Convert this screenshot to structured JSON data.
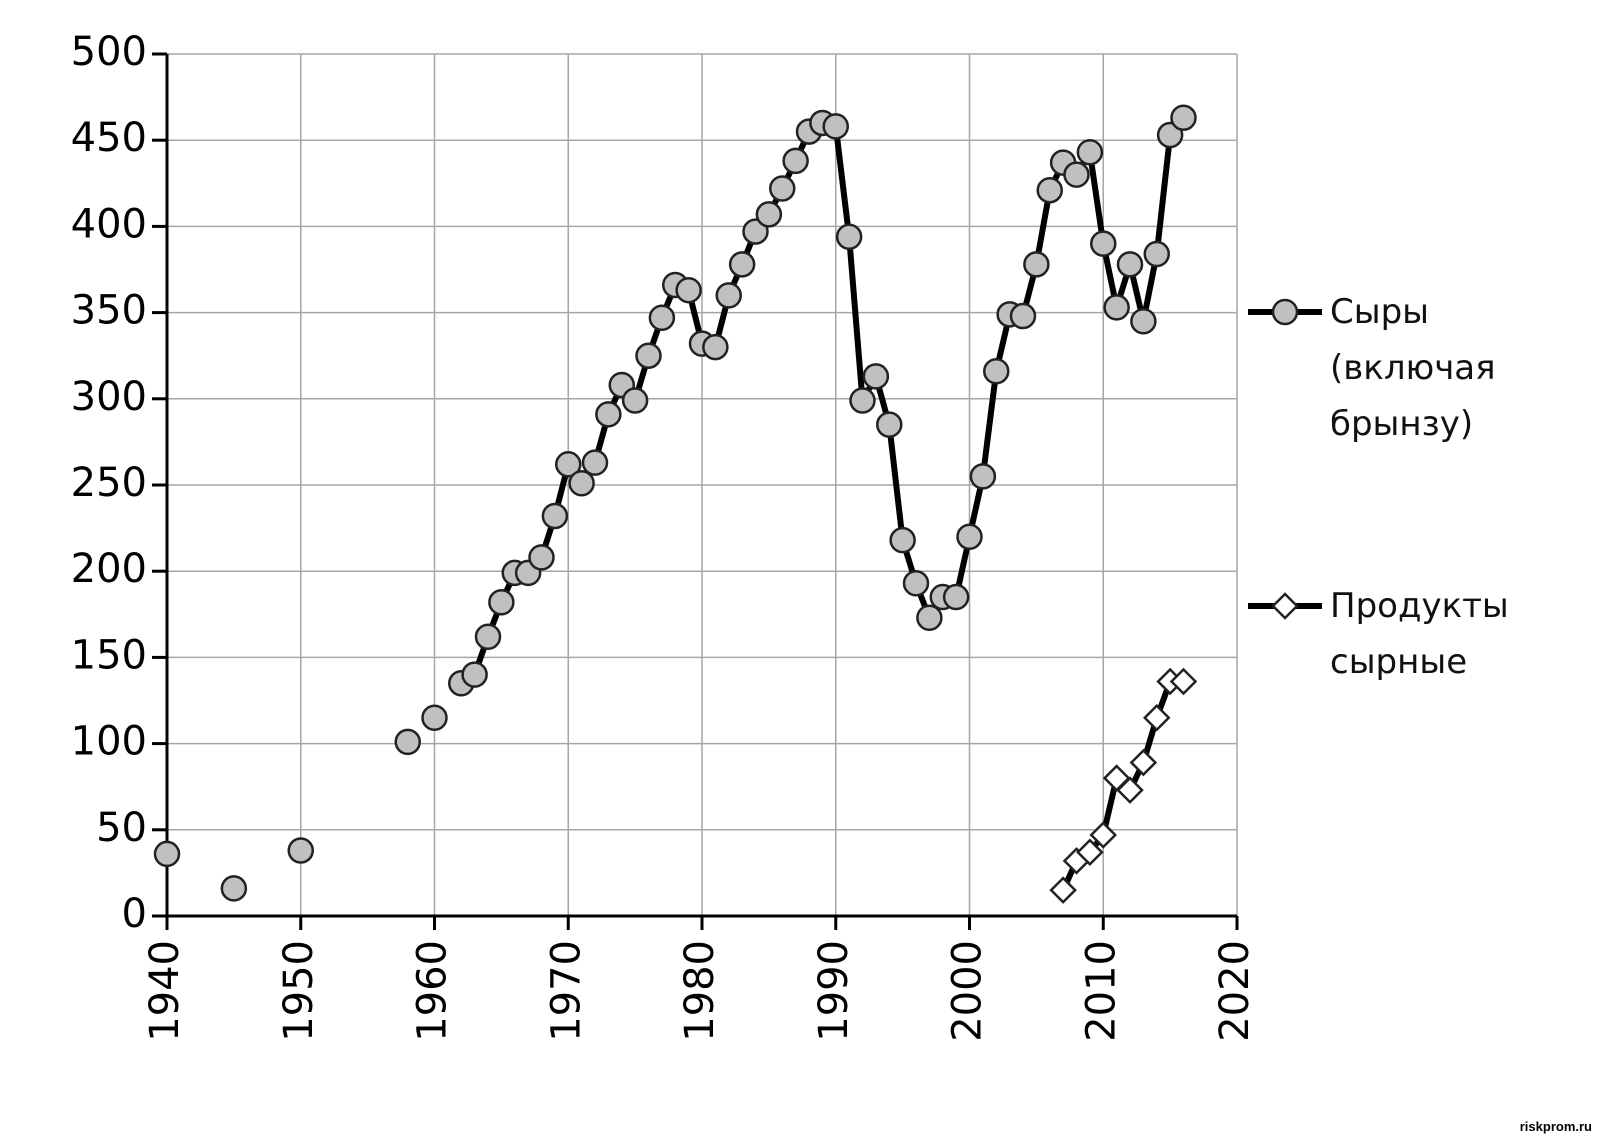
{
  "chart_data": {
    "type": "line",
    "xlim": [
      1940,
      2020
    ],
    "xticks": [
      1940,
      1950,
      1960,
      1970,
      1980,
      1990,
      2000,
      2010,
      2020
    ],
    "ylim": [
      0,
      500
    ],
    "yticks": [
      0,
      50,
      100,
      150,
      200,
      250,
      300,
      350,
      400,
      450,
      500
    ],
    "grid": true,
    "legend": "right",
    "series": [
      {
        "name": "Сыры (включая брынзу)",
        "color": "#c0c0c0",
        "marker": "circle",
        "x": [
          1940,
          1941,
          1942,
          1943,
          1944,
          1945,
          1946,
          1947,
          1948,
          1949,
          1950,
          1951,
          1952,
          1953,
          1954,
          1955,
          1956,
          1957,
          1958,
          1959,
          1960,
          1961,
          1962,
          1963,
          1964,
          1965,
          1966,
          1967,
          1968,
          1969,
          1970,
          1971,
          1972,
          1973,
          1974,
          1975,
          1976,
          1977,
          1978,
          1979,
          1980,
          1981,
          1982,
          1983,
          1984,
          1985,
          1986,
          1987,
          1988,
          1989,
          1990,
          1991,
          1992,
          1993,
          1994,
          1995,
          1996,
          1997,
          1998,
          1999,
          2000,
          2001,
          2002,
          2003,
          2004,
          2005,
          2006,
          2007,
          2008,
          2009,
          2010,
          2011,
          2012,
          2013,
          2014,
          2015,
          2016
        ],
        "values": [
          36,
          null,
          null,
          null,
          null,
          16,
          null,
          null,
          null,
          null,
          38,
          null,
          null,
          null,
          null,
          null,
          null,
          null,
          101,
          null,
          115,
          null,
          135,
          140,
          162,
          182,
          199,
          199,
          208,
          232,
          262,
          251,
          263,
          291,
          308,
          299,
          325,
          347,
          366,
          363,
          332,
          330,
          360,
          378,
          397,
          407,
          422,
          438,
          455,
          460,
          458,
          394,
          299,
          313,
          285,
          218,
          193,
          173,
          185,
          185,
          220,
          255,
          316,
          349,
          348,
          378,
          421,
          437,
          430,
          443,
          390,
          353,
          378,
          345,
          384,
          453,
          463
        ]
      },
      {
        "name": "Продукты сырные",
        "color": "#ffffff",
        "marker": "diamond",
        "x": [
          2007,
          2008,
          2009,
          2010,
          2011,
          2012,
          2013,
          2014,
          2015,
          2016
        ],
        "values": [
          15,
          32,
          37,
          47,
          80,
          73,
          89,
          115,
          136,
          136
        ]
      }
    ]
  },
  "watermark": "riskprom.ru"
}
